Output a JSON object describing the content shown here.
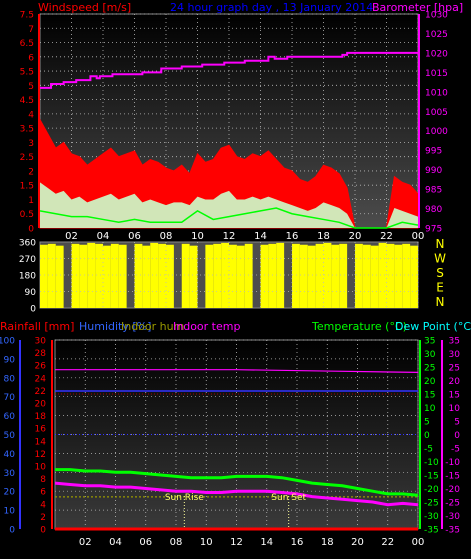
{
  "header": {
    "windspeed_label": "Windspeed [m/s]",
    "title": "24 hour graph day , 13 January 2014",
    "barometer_label": "Barometer [hpa]"
  },
  "legend": {
    "rainfall": "Rainfall [mm]",
    "humidity": "Humidity [%]",
    "indoor_hum": "Indoor hum",
    "indoor_temp": "Indoor temp",
    "temperature": "Temperature (°C)",
    "dew_point": "Dew Point (°C)"
  },
  "compass": [
    "N",
    "W",
    "S",
    "E",
    "N"
  ],
  "annotations": {
    "sunrise": "Sun Rise",
    "sunset": "Sun Set"
  },
  "colors": {
    "wind": "#ff0000",
    "gust_fill": "#ffffff",
    "avg_wind": "#00ff00",
    "barometer": "#ff00ff",
    "wind_dir": "#ffff00",
    "temperature": "#00ff00",
    "dew_point": "#ff00ff",
    "humidity": "#3333ff",
    "indoor_hum": "#999900",
    "indoor_temp": "#ff00ff",
    "rainfall": "#ff0000"
  },
  "chart_data": [
    {
      "type": "area",
      "x_ticks": [
        "02",
        "04",
        "06",
        "08",
        "10",
        "12",
        "14",
        "16",
        "18",
        "20",
        "22",
        "00"
      ],
      "y_left_ticks": [
        "0",
        "0.5",
        "1",
        "1.5",
        "2",
        "2.5",
        "3",
        "3.5",
        "4",
        "4.5",
        "5",
        "5.5",
        "6",
        "6.5",
        "7",
        "7.5"
      ],
      "y_right_ticks": [
        "975",
        "980",
        "985",
        "990",
        "995",
        "1000",
        "1005",
        "1010",
        "1015",
        "1020",
        "1025",
        "1030"
      ],
      "ylim_left": [
        0,
        7.5
      ],
      "ylim_right": [
        975,
        1030
      ],
      "series": [
        {
          "name": "Barometer [hpa]",
          "x": [
            0,
            0.3,
            0.7,
            1.5,
            2.3,
            3.0,
            3.2,
            3.6,
            3.8,
            4.4,
            4.6,
            5.3,
            6.5,
            7.7,
            9.0,
            10.3,
            11.7,
            13.0,
            14.3,
            14.5,
            14.9,
            15.7,
            16.3,
            17.3,
            18.3,
            19.2,
            19.5,
            20.1,
            21.3,
            22.5,
            23.7,
            24
          ],
          "values": [
            1011,
            1011,
            1012,
            1012.5,
            1013,
            1013,
            1014,
            1013.5,
            1014,
            1014,
            1014.5,
            1014.5,
            1015,
            1016,
            1016.5,
            1017,
            1017.5,
            1018,
            1018,
            1019,
            1018.5,
            1019,
            1019,
            1019,
            1019,
            1019.5,
            1020,
            1020,
            1020,
            1020,
            1020,
            1020
          ]
        },
        {
          "name": "Wind gust",
          "x": [
            0,
            0.5,
            1,
            1.5,
            2,
            2.5,
            3,
            3.5,
            4,
            4.5,
            5,
            5.5,
            6,
            6.5,
            7,
            7.5,
            8,
            8.5,
            9,
            9.5,
            10,
            10.5,
            11,
            11.5,
            12,
            12.5,
            13,
            13.5,
            14,
            14.5,
            15,
            15.5,
            16,
            16.5,
            17,
            17.5,
            18,
            18.5,
            19,
            19.5,
            20,
            20.5,
            21,
            21.5,
            22,
            22.5,
            23,
            23.5,
            24
          ],
          "values": [
            3.8,
            3.3,
            2.8,
            3.0,
            2.6,
            2.5,
            2.2,
            2.4,
            2.6,
            2.8,
            2.5,
            2.6,
            2.7,
            2.2,
            2.4,
            2.3,
            2.1,
            2.0,
            2.2,
            1.9,
            2.6,
            2.3,
            2.4,
            2.8,
            2.9,
            2.5,
            2.4,
            2.6,
            2.5,
            2.7,
            2.4,
            2.1,
            2.0,
            1.7,
            1.6,
            1.8,
            2.2,
            2.1,
            1.9,
            1.4,
            0.0,
            0.0,
            0.0,
            0.0,
            0.0,
            1.8,
            1.6,
            1.5,
            1.2
          ]
        },
        {
          "name": "Wind speed",
          "x": [
            0,
            0.5,
            1,
            1.5,
            2,
            2.5,
            3,
            3.5,
            4,
            4.5,
            5,
            5.5,
            6,
            6.5,
            7,
            7.5,
            8,
            8.5,
            9,
            9.5,
            10,
            10.5,
            11,
            11.5,
            12,
            12.5,
            13,
            13.5,
            14,
            14.5,
            15,
            15.5,
            16,
            16.5,
            17,
            17.5,
            18,
            18.5,
            19,
            19.5,
            20,
            20.5,
            21,
            21.5,
            22,
            22.5,
            23,
            23.5,
            24
          ],
          "values": [
            1.6,
            1.4,
            1.2,
            1.3,
            1.0,
            1.1,
            0.9,
            1.0,
            1.1,
            1.2,
            1.0,
            1.1,
            1.2,
            0.9,
            1.0,
            0.9,
            0.8,
            0.9,
            0.9,
            0.8,
            1.1,
            1.0,
            1.0,
            1.2,
            1.3,
            1.0,
            1.0,
            1.1,
            1.0,
            1.1,
            1.0,
            0.9,
            0.8,
            0.7,
            0.6,
            0.7,
            0.9,
            0.8,
            0.7,
            0.5,
            0.0,
            0.0,
            0.0,
            0.0,
            0.0,
            0.7,
            0.6,
            0.5,
            0.4
          ]
        },
        {
          "name": "Average wind",
          "x": [
            0,
            1,
            2,
            3,
            4,
            5,
            6,
            7,
            8,
            9,
            10,
            11,
            12,
            13,
            14,
            15,
            16,
            17,
            18,
            19,
            20,
            21,
            22,
            23,
            24
          ],
          "values": [
            0.6,
            0.5,
            0.4,
            0.4,
            0.3,
            0.2,
            0.3,
            0.2,
            0.2,
            0.2,
            0.6,
            0.3,
            0.4,
            0.5,
            0.6,
            0.7,
            0.5,
            0.4,
            0.3,
            0.2,
            0.0,
            0.0,
            0.0,
            0.2,
            0.1
          ]
        }
      ]
    },
    {
      "type": "bar",
      "y_ticks": [
        "0",
        "90",
        "180",
        "270",
        "360"
      ],
      "ylim": [
        0,
        360
      ],
      "series": [
        {
          "name": "Wind direction",
          "x": [
            0,
            0.5,
            1,
            1.5,
            2,
            2.5,
            3,
            3.5,
            4,
            4.5,
            5,
            5.5,
            6,
            6.5,
            7,
            7.5,
            8,
            8.5,
            9,
            9.5,
            10,
            10.5,
            11,
            11.5,
            12,
            12.5,
            13,
            13.5,
            14,
            14.5,
            15,
            15.5,
            16,
            16.5,
            17,
            17.5,
            18,
            18.5,
            19,
            19.5,
            20,
            20.5,
            21,
            21.5,
            22,
            22.5,
            23,
            23.5
          ],
          "values": [
            345,
            350,
            340,
            0,
            350,
            345,
            355,
            350,
            340,
            350,
            345,
            0,
            350,
            340,
            355,
            350,
            345,
            0,
            350,
            340,
            0,
            345,
            350,
            355,
            345,
            340,
            350,
            0,
            345,
            350,
            355,
            0,
            350,
            345,
            340,
            350,
            355,
            345,
            350,
            0,
            350,
            345,
            340,
            355,
            350,
            345,
            350,
            340
          ]
        }
      ]
    },
    {
      "type": "line",
      "y_rain_ticks": [
        "0",
        "2",
        "4",
        "6",
        "8",
        "10",
        "12",
        "14",
        "16",
        "18",
        "20",
        "22",
        "24",
        "26",
        "28",
        "30"
      ],
      "y_hum_ticks": [
        "0",
        "10",
        "20",
        "30",
        "40",
        "50",
        "60",
        "70",
        "80",
        "90",
        "100"
      ],
      "y_temp_ticks": [
        "-35",
        "-30",
        "-25",
        "-20",
        "-15",
        "-10",
        "-5",
        "0",
        "5",
        "10",
        "15",
        "20",
        "25",
        "30",
        "35"
      ],
      "ylim_rain": [
        0,
        30
      ],
      "ylim_humidity": [
        0,
        100
      ],
      "ylim_temp": [
        -35,
        35
      ],
      "series": [
        {
          "name": "Temperature (°C)",
          "x": [
            0,
            1,
            2,
            3,
            4,
            5,
            6,
            7,
            8,
            9,
            10,
            11,
            12,
            13,
            14,
            15,
            16,
            17,
            18,
            19,
            20,
            21,
            22,
            23,
            24
          ],
          "values": [
            -13,
            -13,
            -13.5,
            -13.5,
            -14,
            -14,
            -14.5,
            -15,
            -15.5,
            -16,
            -16,
            -16,
            -15.5,
            -15.5,
            -15.5,
            -16,
            -17,
            -18,
            -18.5,
            -19,
            -20,
            -21,
            -22,
            -22,
            -22.5
          ]
        },
        {
          "name": "Dew Point (°C)",
          "x": [
            0,
            1,
            2,
            3,
            4,
            5,
            6,
            7,
            8,
            9,
            10,
            11,
            12,
            13,
            14,
            15,
            16,
            17,
            18,
            19,
            20,
            21,
            22,
            23,
            24
          ],
          "values": [
            -18,
            -18.5,
            -19,
            -19,
            -19.5,
            -19.5,
            -20,
            -20.5,
            -21,
            -21,
            -21.5,
            -21.5,
            -21,
            -21,
            -21,
            -21.5,
            -22,
            -23,
            -23.5,
            -24,
            -24.5,
            -25,
            -26,
            -25.5,
            -26
          ]
        },
        {
          "name": "Humidity [%]",
          "x": [
            0,
            24
          ],
          "values": [
            73,
            73
          ]
        },
        {
          "name": "Indoor hum",
          "x": [
            0,
            24
          ],
          "values": [
            17,
            17
          ]
        },
        {
          "name": "Indoor temp",
          "x": [
            0,
            6,
            12,
            18,
            24
          ],
          "values": [
            24,
            24,
            24,
            23.5,
            23
          ]
        },
        {
          "name": "Rainfall [mm]",
          "x": [
            0,
            24
          ],
          "values": [
            0,
            0
          ]
        }
      ],
      "sunrise_hour": 8.55,
      "sunset_hour": 15.45
    }
  ]
}
